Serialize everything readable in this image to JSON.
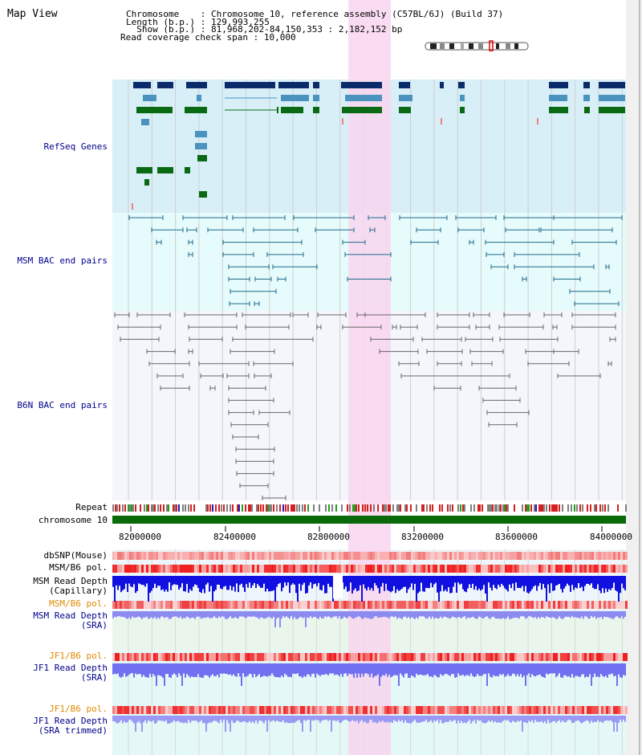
{
  "view_title": "Map View",
  "info": {
    "chromosome_label": "Chromosome   ",
    "chromosome_value": "Chromosome 10, reference assembly (C57BL/6J) (Build 37)",
    "length_label": "Length (b.p.)",
    "length_value": "129,993,255",
    "show_label": "  Show (b.p.)",
    "show_value": "81,968,202-84,150,353 : 2,182,152 bp",
    "coverage_label": "Read coverage check span",
    "coverage_value": "10,000",
    "sep": " : "
  },
  "tracks": {
    "refseq": "RefSeq Genes",
    "msm_bac": "MSM BAC end pairs",
    "b6n_bac": "B6N BAC end pairs",
    "repeat": "Repeat",
    "chromosome": "chromosome 10",
    "dbsnp": "dbSNP(Mouse)",
    "msm_b6_pol": "MSM/B6 pol.",
    "msm_depth_cap_1": "MSM Read Depth",
    "msm_depth_cap_2": "(Capillary)",
    "msm_b6_pol_2": "MSM/B6 pol.",
    "msm_depth_sra_1": "MSM Read Depth",
    "msm_depth_sra_2": "(SRA)",
    "jf1_b6_pol": "JF1/B6 pol.",
    "jf1_depth_sra_1": "JF1 Read Depth",
    "jf1_depth_sra_2": "(SRA)",
    "jf1_b6_pol_2": "JF1/B6 pol.",
    "jf1_depth_trim_1": "JF1 Read Depth",
    "jf1_depth_trim_2": "(SRA trimmed)"
  },
  "axis": {
    "ticks": [
      "82000000",
      "82400000",
      "82800000",
      "83200000",
      "83600000",
      "84000000"
    ]
  },
  "colors": {
    "refseq_bg": "#d8eff8",
    "msm_bg": "#e6fbfb",
    "b6n_bg": "#f4f6fb",
    "highlight": "#f8d6ef",
    "gene_navy": "#0a2a6a",
    "gene_blue": "#4a93bf",
    "gene_green": "#0a6a14",
    "msm_pair": "#1d6a8c",
    "b6n_pair": "#666666",
    "chromosome_bar": "#0a6a0a",
    "orange_label": "#e08a00",
    "blue_label": "#00008b"
  }
}
